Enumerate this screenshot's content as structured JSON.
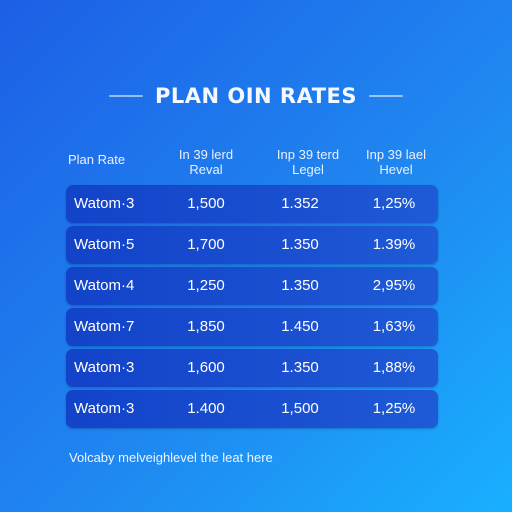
{
  "title": "PLAN OIN RATES",
  "header": {
    "col0": "Plan Rate",
    "col1_line1": "In 39 lerd",
    "col1_line2": "Reval",
    "col2_line1": "Inp 39 terd",
    "col2_line2": "Legel",
    "col3_line1": "Inp 39 lael",
    "col3_line2": "Hevel"
  },
  "rows": [
    {
      "name": "Watom·3",
      "v1": "1,500",
      "v2": "1.352",
      "v3": "1,25%"
    },
    {
      "name": "Watom·5",
      "v1": "1,700",
      "v2": "1.350",
      "v3": "1.39%"
    },
    {
      "name": "Watom·4",
      "v1": "1,250",
      "v2": "1.350",
      "v3": "2,95%"
    },
    {
      "name": "Watom·7",
      "v1": "1,850",
      "v2": "1.450",
      "v3": "1,63%"
    },
    {
      "name": "Watom·3",
      "v1": "1,600",
      "v2": "1.350",
      "v3": "1,88%"
    },
    {
      "name": "Watom·3",
      "v1": "1.400",
      "v2": "1,500",
      "v3": "1,25%"
    }
  ],
  "footer": "Volcaby melveighlevel the leat here",
  "colors": {
    "background_start": "#1d5fe6",
    "background_end": "#19b0ff",
    "row_fill": "#1243c9",
    "text": "#ffffff"
  }
}
